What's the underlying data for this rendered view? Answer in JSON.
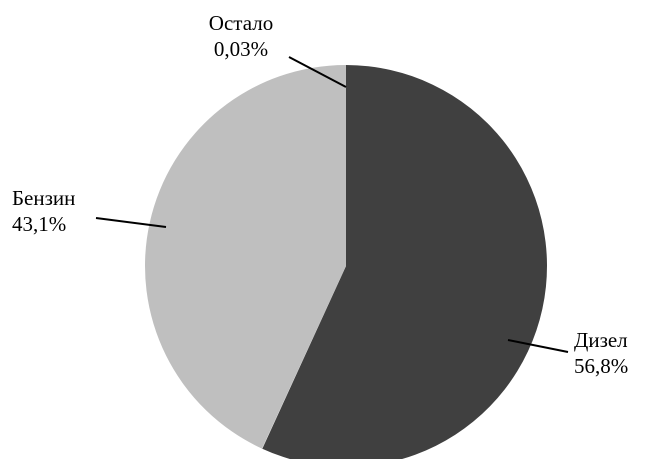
{
  "chart_data": {
    "type": "pie",
    "title": "",
    "legend": "none",
    "slices": [
      {
        "label": "Дизел",
        "value": 56.8,
        "value_label": "56,8%",
        "color": "#404040"
      },
      {
        "label": "Остало",
        "value": 0.03,
        "value_label": "0,03%",
        "color": "#d9d9d9"
      },
      {
        "label": "Бензин",
        "value": 43.1,
        "value_label": "43,1%",
        "color": "#bfbfbf"
      }
    ]
  }
}
